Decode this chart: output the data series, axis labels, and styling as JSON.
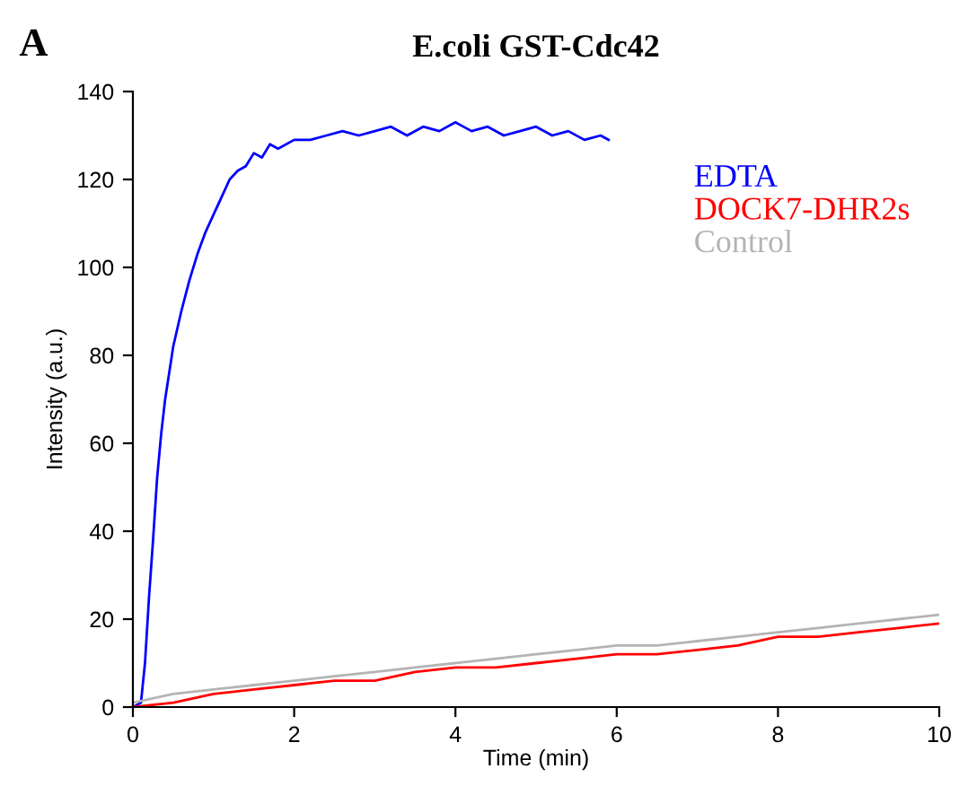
{
  "chart_data": {
    "type": "line",
    "title": "E.coli GST-Cdc42",
    "xlabel": "Time (min)",
    "ylabel": "Intensity (a.u.)",
    "annotations": [
      "A"
    ],
    "xlim": [
      0,
      10
    ],
    "ylim": [
      0,
      140
    ],
    "xticks": [
      0,
      2,
      4,
      6,
      8,
      10
    ],
    "yticks": [
      0,
      20,
      40,
      60,
      80,
      100,
      120,
      140
    ],
    "grid": false,
    "legend": "top right",
    "marker": "none",
    "line_style": "solid",
    "series": [
      {
        "name": "EDTA",
        "color": "#0000ff",
        "x": [
          0,
          0.1,
          0.15,
          0.2,
          0.25,
          0.3,
          0.35,
          0.4,
          0.5,
          0.6,
          0.7,
          0.8,
          0.9,
          1.0,
          1.1,
          1.2,
          1.3,
          1.4,
          1.5,
          1.6,
          1.7,
          1.8,
          2.0,
          2.2,
          2.4,
          2.6,
          2.8,
          3.0,
          3.2,
          3.4,
          3.6,
          3.8,
          4.0,
          4.2,
          4.4,
          4.6,
          4.8,
          5.0,
          5.2,
          5.4,
          5.6,
          5.8,
          5.9
        ],
        "values": [
          0,
          1,
          10,
          25,
          38,
          52,
          62,
          70,
          82,
          90,
          97,
          103,
          108,
          112,
          116,
          120,
          122,
          123,
          126,
          125,
          128,
          127,
          129,
          129,
          130,
          131,
          130,
          131,
          132,
          130,
          132,
          131,
          133,
          131,
          132,
          130,
          131,
          132,
          130,
          131,
          129,
          130,
          129
        ]
      },
      {
        "name": "DOCK7-DHR2s",
        "color": "#ff0000",
        "x": [
          0,
          0.5,
          1,
          1.5,
          2,
          2.5,
          3,
          3.5,
          4,
          4.5,
          5,
          5.5,
          6,
          6.5,
          7,
          7.5,
          8,
          8.5,
          9,
          9.5,
          10
        ],
        "values": [
          0,
          1,
          3,
          4,
          5,
          6,
          6,
          8,
          9,
          9,
          10,
          11,
          12,
          12,
          13,
          14,
          16,
          16,
          17,
          18,
          19
        ]
      },
      {
        "name": "Control",
        "color": "#b4b4b4",
        "x": [
          0,
          0.5,
          1,
          1.5,
          2,
          2.5,
          3,
          3.5,
          4,
          4.5,
          5,
          5.5,
          6,
          6.5,
          7,
          7.5,
          8,
          8.5,
          9,
          9.5,
          10
        ],
        "values": [
          1,
          3,
          4,
          5,
          6,
          7,
          8,
          9,
          10,
          11,
          12,
          13,
          14,
          14,
          15,
          16,
          17,
          18,
          19,
          20,
          21
        ]
      }
    ]
  }
}
